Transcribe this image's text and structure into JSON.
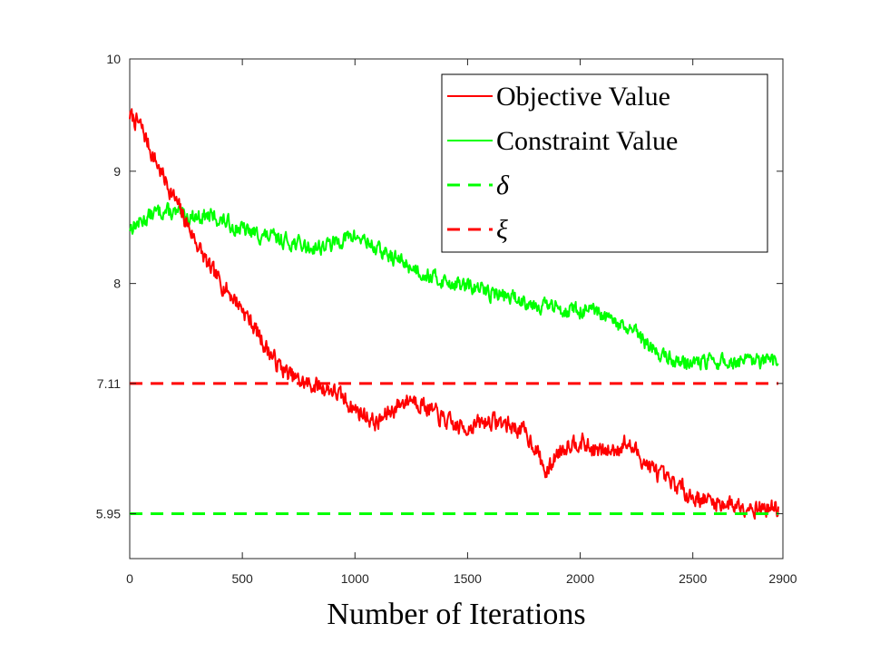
{
  "chart_data": {
    "type": "line",
    "title": "",
    "xlabel": "Number of Iterations",
    "ylabel": "",
    "xlim": [
      0,
      2900
    ],
    "ylim": [
      5.55,
      10
    ],
    "x_ticks": [
      0,
      500,
      1000,
      1500,
      2000,
      2500,
      2900
    ],
    "x_tick_labels": [
      "0",
      "500",
      "1000",
      "1500",
      "2000",
      "2500",
      "2900"
    ],
    "y_ticks": [
      5.95,
      7.11,
      8,
      9,
      10
    ],
    "y_tick_labels": [
      "5.95",
      "7.11",
      "8",
      "9",
      "10"
    ],
    "grid": false,
    "legend_position": "top-right",
    "series": [
      {
        "name": "Objective Value",
        "color": "#ff0000",
        "style": "solid",
        "noise": 0.09,
        "seed": 7,
        "x": [
          0,
          50,
          100,
          150,
          200,
          250,
          300,
          350,
          400,
          450,
          500,
          550,
          600,
          650,
          700,
          750,
          800,
          850,
          900,
          950,
          1000,
          1050,
          1100,
          1150,
          1200,
          1250,
          1300,
          1350,
          1400,
          1450,
          1500,
          1550,
          1600,
          1650,
          1700,
          1750,
          1800,
          1850,
          1900,
          1950,
          2000,
          2050,
          2100,
          2150,
          2200,
          2250,
          2300,
          2350,
          2400,
          2450,
          2500,
          2550,
          2600,
          2650,
          2700,
          2750,
          2800,
          2850,
          2880
        ],
        "y": [
          9.5,
          9.4,
          9.15,
          8.95,
          8.75,
          8.55,
          8.35,
          8.15,
          8.02,
          7.9,
          7.78,
          7.62,
          7.45,
          7.3,
          7.2,
          7.13,
          7.1,
          7.08,
          7.05,
          6.97,
          6.88,
          6.82,
          6.75,
          6.85,
          6.93,
          6.98,
          6.93,
          6.85,
          6.78,
          6.72,
          6.72,
          6.75,
          6.78,
          6.76,
          6.73,
          6.68,
          6.55,
          6.3,
          6.5,
          6.58,
          6.6,
          6.52,
          6.5,
          6.52,
          6.58,
          6.5,
          6.38,
          6.3,
          6.22,
          6.18,
          6.1,
          6.08,
          6.05,
          6.04,
          6.03,
          6.02,
          6.0,
          6.0,
          6.0
        ]
      },
      {
        "name": "Constraint Value",
        "color": "#00ff00",
        "style": "solid",
        "noise": 0.08,
        "seed": 13,
        "x": [
          0,
          50,
          100,
          150,
          200,
          250,
          300,
          350,
          400,
          450,
          500,
          550,
          600,
          650,
          700,
          750,
          800,
          850,
          900,
          950,
          1000,
          1050,
          1100,
          1150,
          1200,
          1250,
          1300,
          1350,
          1400,
          1450,
          1500,
          1550,
          1600,
          1650,
          1700,
          1750,
          1800,
          1850,
          1900,
          1950,
          2000,
          2050,
          2100,
          2150,
          2200,
          2250,
          2300,
          2350,
          2400,
          2450,
          2500,
          2550,
          2600,
          2650,
          2700,
          2750,
          2800,
          2850,
          2880
        ],
        "y": [
          8.5,
          8.55,
          8.62,
          8.65,
          8.62,
          8.6,
          8.6,
          8.6,
          8.57,
          8.52,
          8.48,
          8.45,
          8.42,
          8.4,
          8.38,
          8.35,
          8.32,
          8.33,
          8.35,
          8.4,
          8.42,
          8.38,
          8.3,
          8.25,
          8.2,
          8.15,
          8.1,
          8.05,
          8.02,
          8.0,
          7.97,
          7.95,
          7.92,
          7.9,
          7.87,
          7.85,
          7.82,
          7.8,
          7.78,
          7.77,
          7.76,
          7.75,
          7.7,
          7.65,
          7.6,
          7.55,
          7.45,
          7.38,
          7.33,
          7.3,
          7.3,
          7.3,
          7.3,
          7.3,
          7.3,
          7.3,
          7.3,
          7.3,
          7.3
        ]
      },
      {
        "name": "δ",
        "color": "#00ff00",
        "style": "dashed",
        "x": [
          0,
          2880
        ],
        "y": [
          5.95,
          5.95
        ]
      },
      {
        "name": "ξ",
        "color": "#ff0000",
        "style": "dashed",
        "x": [
          0,
          2880
        ],
        "y": [
          7.11,
          7.11
        ]
      }
    ]
  }
}
